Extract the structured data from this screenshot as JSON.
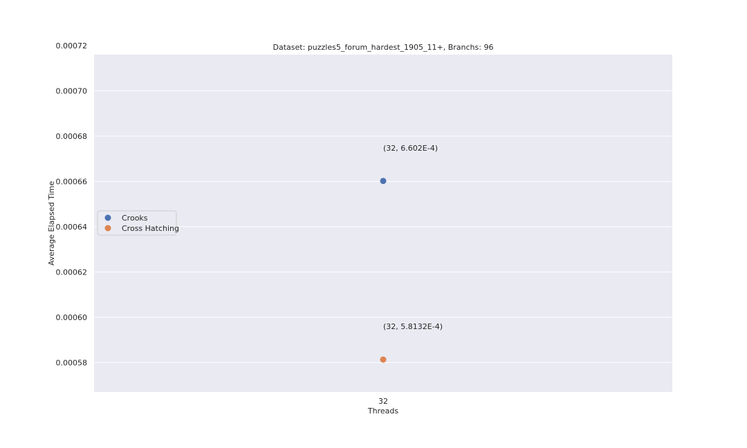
{
  "chart_data": {
    "type": "scatter",
    "title": "Dataset: puzzles5_forum_hardest_1905_11+, Branchs: 96",
    "xlabel": "Threads",
    "ylabel": "Average Elapsed Time",
    "categories": [
      "32"
    ],
    "yticks": [
      "0.00058",
      "0.00060",
      "0.00062",
      "0.00064",
      "0.00066",
      "0.00068",
      "0.00070",
      "0.00072"
    ],
    "ylim": [
      0.000567,
      0.000716
    ],
    "grid": true,
    "legend_position": "center-left",
    "series": [
      {
        "name": "Crooks",
        "color": "#4c72b0",
        "x": [
          "32"
        ],
        "values": [
          0.0006602
        ],
        "label": "(32, 6.602E-4)"
      },
      {
        "name": "Cross Hatching",
        "color": "#dd8452",
        "x": [
          "32"
        ],
        "values": [
          0.00058132
        ],
        "label": "(32, 5.8132E-4)"
      }
    ],
    "colors": {
      "plot_background": "#eaeaf2",
      "grid": "#ffffff"
    }
  }
}
